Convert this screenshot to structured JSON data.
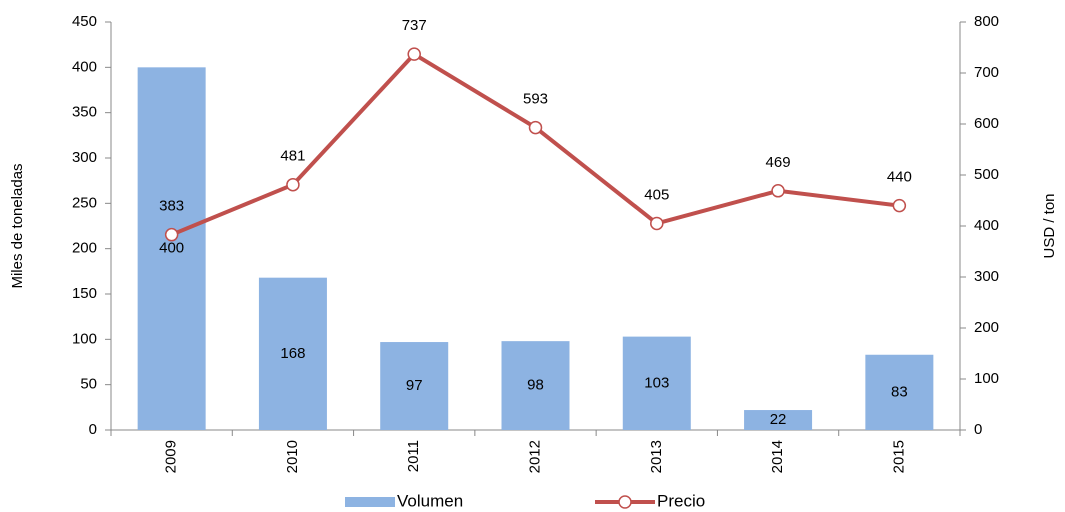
{
  "chart_data": {
    "type": "bar_line",
    "categories": [
      "2009",
      "2010",
      "2011",
      "2012",
      "2013",
      "2014",
      "2015"
    ],
    "ylabel": "Miles de toneladas",
    "y2label": "USD / ton",
    "ylim": [
      0,
      450
    ],
    "yticks": [
      0,
      50,
      100,
      150,
      200,
      250,
      300,
      350,
      400,
      450
    ],
    "y2lim": [
      0,
      800
    ],
    "y2ticks": [
      0,
      100,
      200,
      300,
      400,
      500,
      600,
      700,
      800
    ],
    "legend": "bottom",
    "series": [
      {
        "name": "Volumen",
        "type": "bar",
        "color": "#8db3e2",
        "values": [
          400,
          168,
          97,
          98,
          103,
          22,
          83
        ]
      },
      {
        "name": "Precio",
        "type": "line",
        "axis": "y2",
        "color": "#c0504d",
        "values": [
          383,
          481,
          737,
          593,
          405,
          469,
          440
        ]
      }
    ]
  }
}
